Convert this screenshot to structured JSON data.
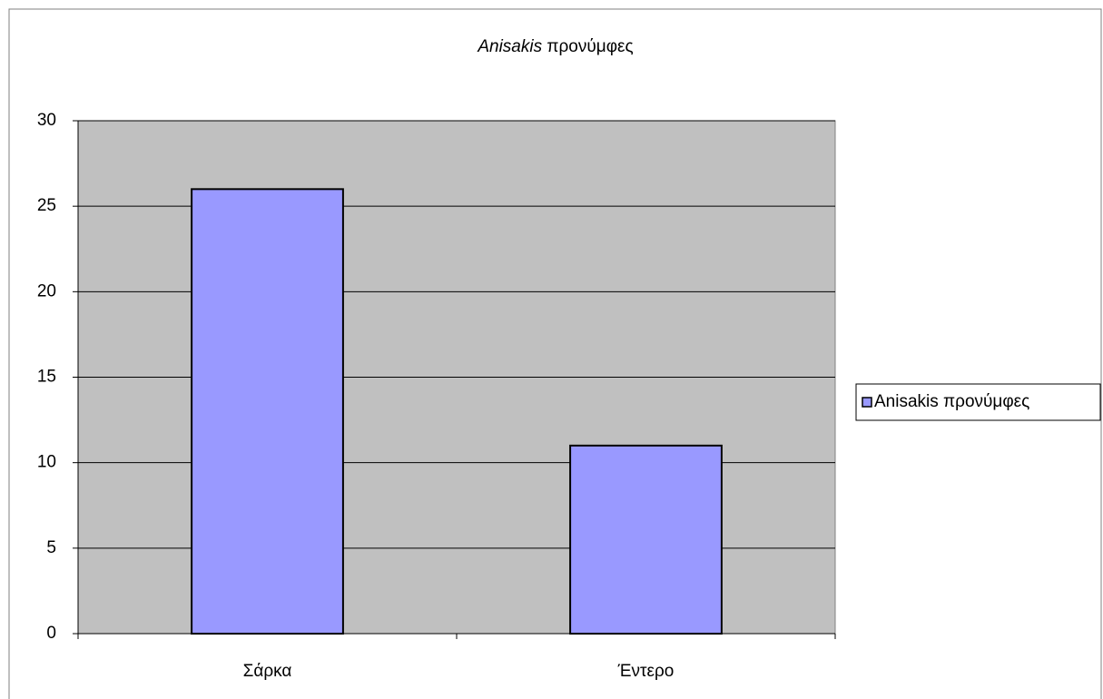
{
  "chart_data": {
    "type": "bar",
    "title": "Anisakis προνύμφες",
    "categories": [
      "Σάρκα",
      "Έντερο"
    ],
    "series": [
      {
        "name": "Anisakis προνύμφες",
        "color": "#9999ff",
        "values": [
          26,
          11
        ]
      }
    ],
    "ylim": [
      0,
      30
    ],
    "yticks": [
      0,
      5,
      10,
      15,
      20,
      25,
      30
    ],
    "grid": true,
    "legend": "right"
  }
}
